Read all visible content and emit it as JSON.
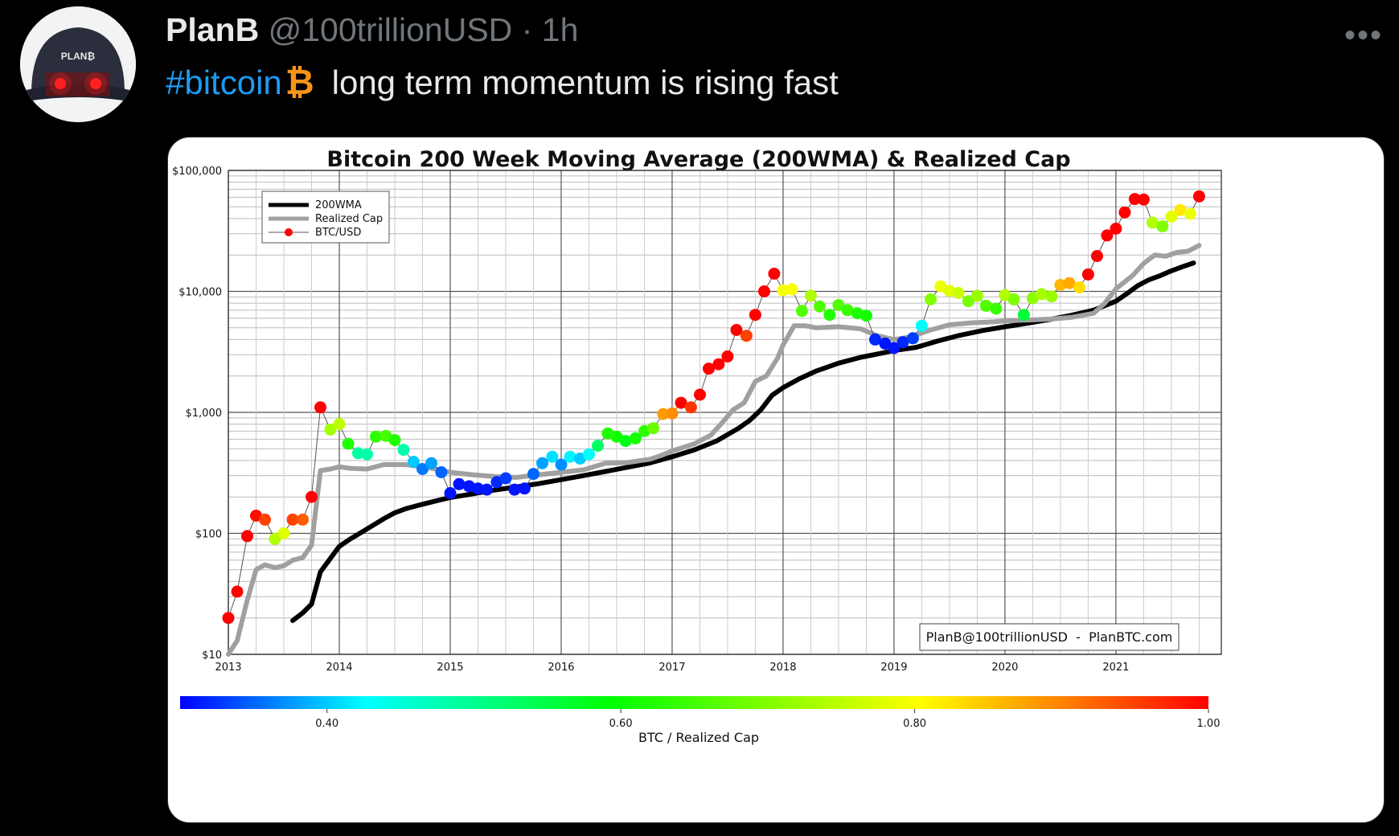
{
  "tweet": {
    "author_name": "PlanB",
    "handle": "@100trillionUSD",
    "separator": "·",
    "time": "1h",
    "more_label": "•••",
    "hashtag": "#bitcoin",
    "btc_emoji": "₿",
    "text": "long term momentum is rising fast",
    "avatar_text": "PLAN₿"
  },
  "chart_data": {
    "type": "line",
    "title": "Bitcoin 200 Week Moving Average (200WMA) & Realized Cap",
    "y_scale": "log",
    "ylim": [
      10,
      100000
    ],
    "xlim": [
      2013,
      2021.95
    ],
    "y_ticks": [
      10,
      100,
      1000,
      10000,
      100000
    ],
    "y_tick_labels": [
      "$10",
      "$100",
      "$1,000",
      "$10,000",
      "$100,000"
    ],
    "x_ticks": [
      2013,
      2014,
      2015,
      2016,
      2017,
      2018,
      2019,
      2020,
      2021
    ],
    "x_tick_labels": [
      "2013",
      "2014",
      "2015",
      "2016",
      "2017",
      "2018",
      "2019",
      "2020",
      "2021"
    ],
    "grid": true,
    "legend_position": "top-left",
    "legend": [
      "200WMA",
      "Realized Cap",
      "BTC/USD"
    ],
    "annotation": "PlanB@100trillionUSD  -  PlanBTC.com",
    "colorbar": {
      "label": "BTC / Realized Cap",
      "range": [
        0.3,
        1.0
      ],
      "ticks": [
        0.4,
        0.6,
        0.8,
        1.0
      ],
      "tick_labels": [
        "0.40",
        "0.60",
        "0.80",
        "1.00"
      ],
      "colors": [
        "#0000ff",
        "#00ffff",
        "#00ff00",
        "#ffff00",
        "#ff0000"
      ]
    },
    "series": [
      {
        "name": "200WMA",
        "color": "#000000",
        "points": [
          [
            2013.58,
            19
          ],
          [
            2013.67,
            22
          ],
          [
            2013.75,
            26
          ],
          [
            2013.83,
            48
          ],
          [
            2013.92,
            62
          ],
          [
            2014.0,
            78
          ],
          [
            2014.1,
            90
          ],
          [
            2014.2,
            102
          ],
          [
            2014.3,
            116
          ],
          [
            2014.4,
            132
          ],
          [
            2014.5,
            148
          ],
          [
            2014.6,
            160
          ],
          [
            2014.75,
            174
          ],
          [
            2014.9,
            188
          ],
          [
            2015.0,
            198
          ],
          [
            2015.2,
            212
          ],
          [
            2015.4,
            228
          ],
          [
            2015.6,
            242
          ],
          [
            2015.8,
            258
          ],
          [
            2016.0,
            278
          ],
          [
            2016.2,
            300
          ],
          [
            2016.4,
            325
          ],
          [
            2016.6,
            352
          ],
          [
            2016.8,
            382
          ],
          [
            2017.0,
            430
          ],
          [
            2017.2,
            490
          ],
          [
            2017.4,
            580
          ],
          [
            2017.6,
            740
          ],
          [
            2017.7,
            860
          ],
          [
            2017.8,
            1050
          ],
          [
            2017.9,
            1380
          ],
          [
            2018.0,
            1600
          ],
          [
            2018.15,
            1900
          ],
          [
            2018.3,
            2200
          ],
          [
            2018.5,
            2550
          ],
          [
            2018.7,
            2850
          ],
          [
            2018.9,
            3100
          ],
          [
            2019.0,
            3250
          ],
          [
            2019.2,
            3450
          ],
          [
            2019.4,
            3900
          ],
          [
            2019.6,
            4350
          ],
          [
            2019.8,
            4750
          ],
          [
            2020.0,
            5100
          ],
          [
            2020.2,
            5450
          ],
          [
            2020.4,
            5850
          ],
          [
            2020.6,
            6350
          ],
          [
            2020.8,
            7000
          ],
          [
            2021.0,
            8300
          ],
          [
            2021.1,
            9600
          ],
          [
            2021.2,
            11200
          ],
          [
            2021.3,
            12500
          ],
          [
            2021.4,
            13500
          ],
          [
            2021.5,
            14800
          ],
          [
            2021.6,
            16000
          ],
          [
            2021.7,
            17200
          ]
        ]
      },
      {
        "name": "Realized Cap",
        "color": "#a0a0a0",
        "points": [
          [
            2013.0,
            10
          ],
          [
            2013.08,
            13
          ],
          [
            2013.17,
            28
          ],
          [
            2013.25,
            50
          ],
          [
            2013.33,
            55
          ],
          [
            2013.42,
            52
          ],
          [
            2013.5,
            54
          ],
          [
            2013.58,
            60
          ],
          [
            2013.67,
            63
          ],
          [
            2013.75,
            80
          ],
          [
            2013.83,
            330
          ],
          [
            2013.92,
            340
          ],
          [
            2014.0,
            355
          ],
          [
            2014.1,
            345
          ],
          [
            2014.25,
            340
          ],
          [
            2014.4,
            370
          ],
          [
            2014.6,
            370
          ],
          [
            2014.8,
            350
          ],
          [
            2015.0,
            320
          ],
          [
            2015.2,
            305
          ],
          [
            2015.4,
            295
          ],
          [
            2015.6,
            290
          ],
          [
            2015.8,
            305
          ],
          [
            2016.0,
            320
          ],
          [
            2016.2,
            335
          ],
          [
            2016.4,
            380
          ],
          [
            2016.6,
            385
          ],
          [
            2016.8,
            410
          ],
          [
            2016.9,
            440
          ],
          [
            2017.0,
            480
          ],
          [
            2017.2,
            550
          ],
          [
            2017.35,
            650
          ],
          [
            2017.45,
            820
          ],
          [
            2017.55,
            1050
          ],
          [
            2017.65,
            1200
          ],
          [
            2017.75,
            1800
          ],
          [
            2017.85,
            2000
          ],
          [
            2017.95,
            2800
          ],
          [
            2018.0,
            3600
          ],
          [
            2018.1,
            5200
          ],
          [
            2018.2,
            5200
          ],
          [
            2018.3,
            5000
          ],
          [
            2018.5,
            5100
          ],
          [
            2018.7,
            4900
          ],
          [
            2018.85,
            4300
          ],
          [
            2019.0,
            4000
          ],
          [
            2019.15,
            4200
          ],
          [
            2019.3,
            4700
          ],
          [
            2019.5,
            5300
          ],
          [
            2019.7,
            5500
          ],
          [
            2019.9,
            5600
          ],
          [
            2020.0,
            5700
          ],
          [
            2020.2,
            5800
          ],
          [
            2020.4,
            5900
          ],
          [
            2020.6,
            6100
          ],
          [
            2020.8,
            6600
          ],
          [
            2020.9,
            8000
          ],
          [
            2021.0,
            10500
          ],
          [
            2021.15,
            13500
          ],
          [
            2021.25,
            17000
          ],
          [
            2021.35,
            20000
          ],
          [
            2021.45,
            19500
          ],
          [
            2021.55,
            21000
          ],
          [
            2021.65,
            21500
          ],
          [
            2021.75,
            24000
          ]
        ]
      },
      {
        "name": "BTC/USD",
        "color": "#555555",
        "points": [
          [
            2013.0,
            20,
            1.0
          ],
          [
            2013.08,
            33,
            1.0
          ],
          [
            2013.17,
            95,
            1.0
          ],
          [
            2013.25,
            140,
            0.99
          ],
          [
            2013.33,
            130,
            0.95
          ],
          [
            2013.42,
            90,
            0.74
          ],
          [
            2013.5,
            100,
            0.78
          ],
          [
            2013.58,
            130,
            0.95
          ],
          [
            2013.67,
            130,
            0.93
          ],
          [
            2013.75,
            200,
            1.0
          ],
          [
            2013.83,
            1100,
            1.0
          ],
          [
            2013.92,
            720,
            0.73
          ],
          [
            2014.0,
            800,
            0.75
          ],
          [
            2014.08,
            550,
            0.62
          ],
          [
            2014.17,
            460,
            0.49
          ],
          [
            2014.25,
            450,
            0.48
          ],
          [
            2014.33,
            630,
            0.63
          ],
          [
            2014.42,
            640,
            0.65
          ],
          [
            2014.5,
            590,
            0.62
          ],
          [
            2014.58,
            490,
            0.48
          ],
          [
            2014.67,
            390,
            0.4
          ],
          [
            2014.75,
            340,
            0.36
          ],
          [
            2014.83,
            380,
            0.38
          ],
          [
            2014.92,
            320,
            0.35
          ],
          [
            2015.0,
            215,
            0.31
          ],
          [
            2015.08,
            255,
            0.31
          ],
          [
            2015.17,
            245,
            0.31
          ],
          [
            2015.25,
            235,
            0.31
          ],
          [
            2015.33,
            230,
            0.31
          ],
          [
            2015.42,
            265,
            0.32
          ],
          [
            2015.5,
            285,
            0.33
          ],
          [
            2015.58,
            230,
            0.31
          ],
          [
            2015.67,
            235,
            0.31
          ],
          [
            2015.75,
            310,
            0.35
          ],
          [
            2015.83,
            380,
            0.38
          ],
          [
            2015.92,
            430,
            0.41
          ],
          [
            2016.0,
            370,
            0.37
          ],
          [
            2016.08,
            430,
            0.42
          ],
          [
            2016.17,
            415,
            0.4
          ],
          [
            2016.25,
            450,
            0.43
          ],
          [
            2016.33,
            530,
            0.53
          ],
          [
            2016.42,
            670,
            0.62
          ],
          [
            2016.5,
            630,
            0.61
          ],
          [
            2016.58,
            580,
            0.58
          ],
          [
            2016.67,
            610,
            0.61
          ],
          [
            2016.75,
            700,
            0.63
          ],
          [
            2016.83,
            740,
            0.68
          ],
          [
            2016.92,
            970,
            0.88
          ],
          [
            2017.0,
            980,
            0.89
          ],
          [
            2017.08,
            1200,
            1.0
          ],
          [
            2017.17,
            1100,
            0.96
          ],
          [
            2017.25,
            1400,
            1.0
          ],
          [
            2017.33,
            2300,
            1.0
          ],
          [
            2017.42,
            2500,
            1.0
          ],
          [
            2017.5,
            2900,
            1.0
          ],
          [
            2017.58,
            4800,
            1.0
          ],
          [
            2017.67,
            4300,
            0.95
          ],
          [
            2017.75,
            6400,
            1.0
          ],
          [
            2017.83,
            10000,
            1.0
          ],
          [
            2017.92,
            14000,
            1.0
          ],
          [
            2018.0,
            10200,
            0.8
          ],
          [
            2018.08,
            10400,
            0.8
          ],
          [
            2018.17,
            6900,
            0.66
          ],
          [
            2018.25,
            9200,
            0.74
          ],
          [
            2018.33,
            7500,
            0.66
          ],
          [
            2018.42,
            6400,
            0.62
          ],
          [
            2018.5,
            7700,
            0.66
          ],
          [
            2018.58,
            7000,
            0.64
          ],
          [
            2018.67,
            6600,
            0.62
          ],
          [
            2018.75,
            6300,
            0.61
          ],
          [
            2018.83,
            4000,
            0.32
          ],
          [
            2018.92,
            3700,
            0.31
          ],
          [
            2019.0,
            3400,
            0.31
          ],
          [
            2019.08,
            3800,
            0.32
          ],
          [
            2019.17,
            4100,
            0.33
          ],
          [
            2019.25,
            5200,
            0.43
          ],
          [
            2019.33,
            8600,
            0.7
          ],
          [
            2019.42,
            11000,
            0.79
          ],
          [
            2019.5,
            10100,
            0.78
          ],
          [
            2019.58,
            9700,
            0.76
          ],
          [
            2019.67,
            8300,
            0.69
          ],
          [
            2019.75,
            9200,
            0.72
          ],
          [
            2019.83,
            7600,
            0.66
          ],
          [
            2019.92,
            7200,
            0.64
          ],
          [
            2020.0,
            9300,
            0.74
          ],
          [
            2020.08,
            8600,
            0.7
          ],
          [
            2020.17,
            6400,
            0.56
          ],
          [
            2020.25,
            8800,
            0.71
          ],
          [
            2020.33,
            9500,
            0.73
          ],
          [
            2020.42,
            9100,
            0.72
          ],
          [
            2020.5,
            11300,
            0.86
          ],
          [
            2020.58,
            11700,
            0.87
          ],
          [
            2020.67,
            10800,
            0.83
          ],
          [
            2020.75,
            13800,
            1.0
          ],
          [
            2020.83,
            19600,
            1.0
          ],
          [
            2020.92,
            29000,
            1.0
          ],
          [
            2021.0,
            33000,
            1.0
          ],
          [
            2021.08,
            45000,
            1.0
          ],
          [
            2021.17,
            58000,
            1.0
          ],
          [
            2021.25,
            57500,
            1.0
          ],
          [
            2021.33,
            37000,
            0.74
          ],
          [
            2021.42,
            34500,
            0.7
          ],
          [
            2021.5,
            41500,
            0.78
          ],
          [
            2021.58,
            47000,
            0.82
          ],
          [
            2021.67,
            43800,
            0.79
          ],
          [
            2021.75,
            61000,
            1.0
          ]
        ]
      }
    ]
  }
}
